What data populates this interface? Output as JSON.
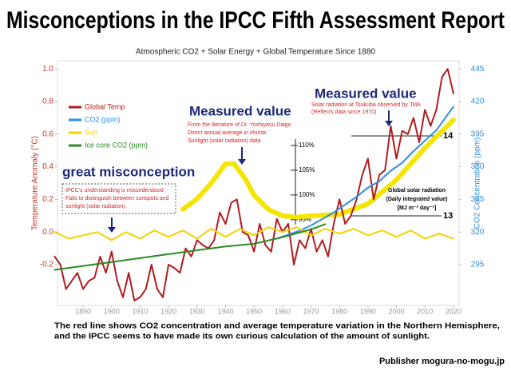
{
  "chart_data": {
    "type": "line",
    "title": "Misconceptions in the IPCC Fifth Assessment Report",
    "subtitle": "Atmospheric CO2 + Solar Energy + Global Temperature Since 1880",
    "ylabel": "Temperature Anomaly (°C)",
    "y2label": "CO2 Concentration (ppm)",
    "xlim": [
      1881,
      2022
    ],
    "xticks": [
      1890,
      1900,
      1910,
      1920,
      1930,
      1940,
      1950,
      1960,
      1970,
      1980,
      1990,
      2000,
      2010,
      2020
    ],
    "ylim": [
      -0.45,
      1.05
    ],
    "yticks": [
      {
        "value": 1,
        "label": "1.0"
      },
      0.8,
      0.6,
      0.4,
      0.2,
      {
        "value": 0,
        "label": "0.0"
      },
      -0.2
    ],
    "y2lim": [
      263.75,
      451.25
    ],
    "y2ticks": [
      445,
      420,
      395,
      370,
      345,
      320,
      295
    ],
    "y3lim": [
      77.7,
      127.1
    ],
    "y3ticks": [
      {
        "value": 110,
        "label": "110%"
      },
      {
        "value": 105,
        "label": "105%"
      },
      {
        "value": 100,
        "label": "100%"
      },
      {
        "value": 95,
        "label": "95%"
      }
    ],
    "y4lim": [
      11.88,
      14.94
    ],
    "y4ticks": [
      14,
      13
    ],
    "legend": "upper left",
    "series": [
      {
        "name": "Global Temp",
        "color": "#b01c20",
        "axis": "y",
        "x": [
          1880,
          1882,
          1884,
          1886,
          1888,
          1890,
          1892,
          1894,
          1896,
          1898,
          1900,
          1902,
          1904,
          1906,
          1908,
          1910,
          1912,
          1914,
          1916,
          1918,
          1920,
          1922,
          1924,
          1926,
          1928,
          1930,
          1932,
          1934,
          1936,
          1938,
          1940,
          1942,
          1944,
          1946,
          1948,
          1950,
          1952,
          1954,
          1956,
          1958,
          1960,
          1962,
          1964,
          1966,
          1968,
          1970,
          1972,
          1974,
          1976,
          1978,
          1980,
          1982,
          1984,
          1986,
          1988,
          1990,
          1992,
          1994,
          1996,
          1998,
          2000,
          2002,
          2004,
          2006,
          2008,
          2010,
          2012,
          2014,
          2016,
          2018,
          2020
        ],
        "values": [
          -0.15,
          -0.2,
          -0.35,
          -0.3,
          -0.25,
          -0.35,
          -0.3,
          -0.28,
          -0.15,
          -0.25,
          -0.12,
          -0.3,
          -0.4,
          -0.25,
          -0.42,
          -0.4,
          -0.35,
          -0.2,
          -0.35,
          -0.4,
          -0.2,
          -0.22,
          -0.25,
          -0.1,
          -0.15,
          -0.05,
          -0.08,
          -0.1,
          -0.05,
          0.12,
          0.05,
          0.18,
          0.2,
          0.0,
          -0.02,
          -0.12,
          0.05,
          -0.08,
          -0.12,
          0.08,
          0.0,
          0.05,
          -0.2,
          -0.05,
          -0.1,
          0.02,
          -0.12,
          -0.05,
          -0.15,
          0.05,
          0.2,
          0.05,
          0.1,
          0.2,
          0.35,
          0.45,
          0.2,
          0.35,
          0.38,
          0.65,
          0.45,
          0.62,
          0.6,
          0.7,
          0.55,
          0.75,
          0.65,
          0.75,
          0.95,
          1.0,
          0.85
        ]
      },
      {
        "name": "CO2 (ppm)",
        "color": "#2e8fe0",
        "axis": "y2",
        "x": [
          1958,
          1962,
          1966,
          1970,
          1974,
          1978,
          1982,
          1986,
          1990,
          1994,
          1998,
          2002,
          2006,
          2010,
          2014,
          2018,
          2020
        ],
        "values": [
          315,
          318,
          321,
          325,
          330,
          335,
          341,
          347,
          354,
          359,
          367,
          373,
          382,
          390,
          398,
          410,
          416
        ]
      },
      {
        "name": "Sun",
        "color": "#f2d200",
        "axis": "y",
        "x": [
          1880,
          1885,
          1890,
          1895,
          1900,
          1905,
          1910,
          1915,
          1920,
          1925,
          1930,
          1935,
          1940,
          1945,
          1950,
          1955,
          1960,
          1965,
          1970,
          1975,
          1980,
          1985,
          1990,
          1995,
          2000,
          2005,
          2010,
          2015,
          2020
        ],
        "values": [
          0.0,
          -0.04,
          -0.02,
          0.0,
          -0.05,
          0.0,
          -0.04,
          0.01,
          -0.03,
          0.01,
          -0.04,
          0.02,
          -0.03,
          0.02,
          -0.02,
          0.03,
          0.0,
          0.03,
          -0.02,
          0.02,
          -0.01,
          0.02,
          -0.02,
          0.01,
          -0.03,
          0.01,
          -0.04,
          -0.01,
          -0.04
        ]
      },
      {
        "name": "Ice core CO2 (ppm)",
        "color": "#2a8a22",
        "axis": "y2",
        "x": [
          1880,
          1890,
          1900,
          1910,
          1920,
          1930,
          1940,
          1950,
          1960,
          1970,
          1975
        ],
        "values": [
          291,
          294,
          297,
          300,
          303,
          306,
          309,
          311,
          316,
          322,
          326
        ]
      },
      {
        "color": "#f5e600",
        "axis": "y3",
        "x": [
          1925,
          1930,
          1935,
          1940,
          1943,
          1947,
          1950,
          1955,
          1960,
          1965,
          1970
        ],
        "values": [
          97.1,
          99.2,
          102.4,
          106.3,
          106.3,
          103.2,
          100,
          97.1,
          95.8,
          95.5,
          95.8
        ]
      },
      {
        "color": "#f5e600",
        "axis": "y4",
        "x": [
          1970,
          1980,
          1990,
          2000,
          2010,
          2020
        ],
        "values": [
          13.0,
          13.02,
          13.15,
          13.45,
          13.85,
          14.2
        ]
      }
    ],
    "annotations": {
      "irkutsk": {
        "heading": "Measured value",
        "lines": [
          "From the literature of Dr. Yoshiyasu Daigo",
          "Direct annual average in Irkutsk",
          "Sunlight (solar radiation) data"
        ]
      },
      "tsukuba": {
        "heading": "Measured value",
        "lines": [
          "Solar radiation at Tsukuba observed by JMA",
          "(Reflects data since 1970)"
        ]
      },
      "misconception": {
        "heading": "great misconception",
        "lines": [
          "IPCC's understanding is misunderstood",
          "Fails to distinguish between sunspots and",
          "sunlight (solar radiation)."
        ]
      },
      "radiation_unit": [
        "Global solar radiation",
        "(Daily integrated value)",
        "[MJ m⁻² day⁻¹]"
      ]
    },
    "footnote": [
      "The red line shows CO2 concentration and average temperature variation in the Northern Hemisphere,",
      "and the IPCC seems to have made its own curious calculation of the amount of sunlight."
    ],
    "publisher": "Publisher mogura-no-mogu.jp"
  }
}
